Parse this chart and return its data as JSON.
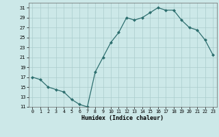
{
  "x": [
    0,
    1,
    2,
    3,
    4,
    5,
    6,
    7,
    8,
    9,
    10,
    11,
    12,
    13,
    14,
    15,
    16,
    17,
    18,
    19,
    20,
    21,
    22,
    23
  ],
  "y": [
    17.0,
    16.5,
    15.0,
    14.5,
    14.0,
    12.5,
    11.5,
    11.0,
    18.0,
    21.0,
    24.0,
    26.0,
    29.0,
    28.5,
    29.0,
    30.0,
    31.0,
    30.5,
    30.5,
    28.5,
    27.0,
    26.5,
    24.5,
    21.5
  ],
  "xlabel": "Humidex (Indice chaleur)",
  "ylim": [
    11,
    32
  ],
  "yticks": [
    11,
    13,
    15,
    17,
    19,
    21,
    23,
    25,
    27,
    29,
    31
  ],
  "xticks": [
    0,
    1,
    2,
    3,
    4,
    5,
    6,
    7,
    8,
    9,
    10,
    11,
    12,
    13,
    14,
    15,
    16,
    17,
    18,
    19,
    20,
    21,
    22,
    23
  ],
  "line_color": "#2d6e6e",
  "marker_color": "#2d6e6e",
  "bg_color": "#cce8e8",
  "grid_color": "#aacccc"
}
